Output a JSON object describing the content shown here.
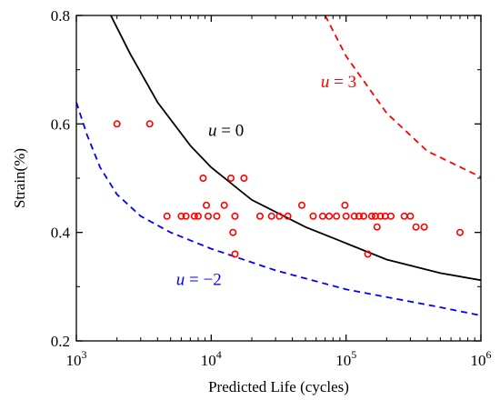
{
  "chart_data": {
    "type": "scatter",
    "title": "",
    "xlabel": "Predicted Life (cycles)",
    "ylabel": "Strain(%)",
    "xscale": "log",
    "xlim": [
      1000,
      1000000
    ],
    "ylim": [
      0.2,
      0.8
    ],
    "grid": false,
    "x_ticks": [
      {
        "value": 1000,
        "base": "10",
        "exp": "3"
      },
      {
        "value": 10000,
        "base": "10",
        "exp": "4"
      },
      {
        "value": 100000,
        "base": "10",
        "exp": "5"
      },
      {
        "value": 1000000,
        "base": "10",
        "exp": "6"
      }
    ],
    "y_ticks": [
      {
        "value": 0.2,
        "label": "0.2"
      },
      {
        "value": 0.4,
        "label": "0.4"
      },
      {
        "value": 0.6,
        "label": "0.6"
      },
      {
        "value": 0.8,
        "label": "0.8"
      }
    ],
    "curves": [
      {
        "name": "u = 0",
        "var": "u",
        "rest": " = 0",
        "color": "#000000",
        "dash": "",
        "label_at": {
          "x": 9500,
          "y": 0.578
        },
        "points": [
          [
            1800,
            0.8
          ],
          [
            2500,
            0.73
          ],
          [
            4000,
            0.64
          ],
          [
            7000,
            0.56
          ],
          [
            10000,
            0.52
          ],
          [
            20000,
            0.46
          ],
          [
            50000,
            0.41
          ],
          [
            100000,
            0.38
          ],
          [
            200000,
            0.35
          ],
          [
            500000,
            0.325
          ],
          [
            1000000,
            0.312
          ]
        ]
      },
      {
        "name": "u = 3",
        "var": "u",
        "rest": " = 3",
        "color": "#ff0000",
        "dash": "7,5",
        "label_at": {
          "x": 65000,
          "y": 0.668
        },
        "points": [
          [
            70000,
            0.8
          ],
          [
            100000,
            0.725
          ],
          [
            200000,
            0.62
          ],
          [
            400000,
            0.55
          ],
          [
            1000000,
            0.502
          ]
        ]
      },
      {
        "name": "u = −2",
        "var": "u",
        "rest": " = −2",
        "color": "#0000ff",
        "dash": "7,5",
        "label_at": {
          "x": 5500,
          "y": 0.303
        },
        "points": [
          [
            1000,
            0.64
          ],
          [
            1200,
            0.58
          ],
          [
            1500,
            0.52
          ],
          [
            2000,
            0.47
          ],
          [
            3000,
            0.43
          ],
          [
            5000,
            0.4
          ],
          [
            10000,
            0.37
          ],
          [
            30000,
            0.33
          ],
          [
            100000,
            0.295
          ],
          [
            500000,
            0.262
          ],
          [
            1000000,
            0.247
          ]
        ]
      }
    ],
    "series": [
      {
        "name": "",
        "marker": "open-circle",
        "color": "#ff0000",
        "points": [
          [
            2000,
            0.6
          ],
          [
            3500,
            0.6
          ],
          [
            4700,
            0.43
          ],
          [
            6000,
            0.43
          ],
          [
            6500,
            0.43
          ],
          [
            7500,
            0.43
          ],
          [
            8000,
            0.43
          ],
          [
            8700,
            0.5
          ],
          [
            9200,
            0.45
          ],
          [
            9500,
            0.43
          ],
          [
            11000,
            0.43
          ],
          [
            12500,
            0.45
          ],
          [
            14000,
            0.5
          ],
          [
            15000,
            0.43
          ],
          [
            14500,
            0.4
          ],
          [
            15000,
            0.36
          ],
          [
            17500,
            0.5
          ],
          [
            23000,
            0.43
          ],
          [
            28000,
            0.43
          ],
          [
            32000,
            0.43
          ],
          [
            37000,
            0.43
          ],
          [
            47000,
            0.45
          ],
          [
            57000,
            0.43
          ],
          [
            67000,
            0.43
          ],
          [
            75000,
            0.43
          ],
          [
            85000,
            0.43
          ],
          [
            98000,
            0.45
          ],
          [
            100000,
            0.43
          ],
          [
            115000,
            0.43
          ],
          [
            125000,
            0.43
          ],
          [
            135000,
            0.43
          ],
          [
            145000,
            0.36
          ],
          [
            155000,
            0.43
          ],
          [
            165000,
            0.43
          ],
          [
            170000,
            0.41
          ],
          [
            180000,
            0.43
          ],
          [
            195000,
            0.43
          ],
          [
            215000,
            0.43
          ],
          [
            270000,
            0.43
          ],
          [
            300000,
            0.43
          ],
          [
            330000,
            0.41
          ],
          [
            380000,
            0.41
          ],
          [
            700000,
            0.4
          ]
        ]
      }
    ]
  }
}
